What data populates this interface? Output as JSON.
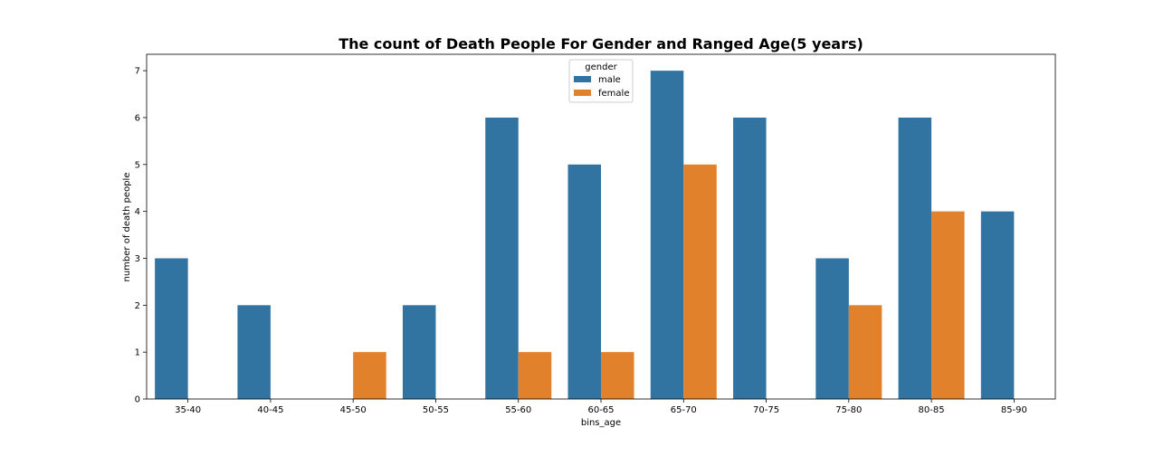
{
  "chart_data": {
    "type": "bar",
    "title": "The count of Death People For Gender and Ranged Age(5 years)",
    "xlabel": "bins_age",
    "ylabel": "number of death people",
    "categories": [
      "35-40",
      "40-45",
      "45-50",
      "50-55",
      "55-60",
      "60-65",
      "65-70",
      "70-75",
      "75-80",
      "80-85",
      "85-90"
    ],
    "series": [
      {
        "name": "male",
        "color": "#3274a1",
        "values": [
          3,
          2,
          0,
          2,
          6,
          5,
          7,
          6,
          3,
          6,
          4
        ]
      },
      {
        "name": "female",
        "color": "#e1812c",
        "values": [
          0,
          0,
          1,
          0,
          1,
          1,
          5,
          0,
          2,
          4,
          0
        ]
      }
    ],
    "ylim": [
      0,
      7.35
    ],
    "yticks": [
      0,
      1,
      2,
      3,
      4,
      5,
      6,
      7
    ],
    "legend": {
      "title": "gender",
      "placement": "upper-center"
    },
    "grid": false
  }
}
